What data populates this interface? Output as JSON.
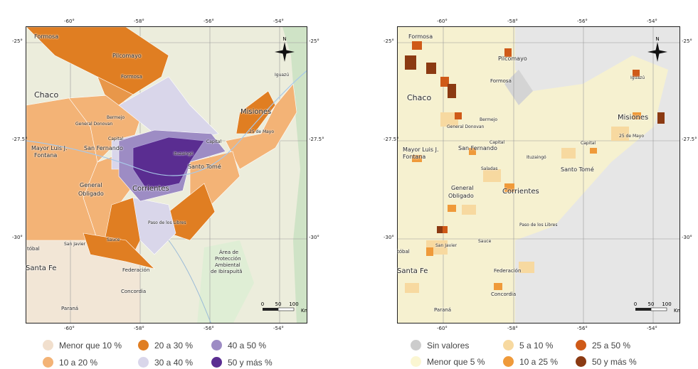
{
  "maps": [
    {
      "id": "left",
      "x_ticks": [
        "-60°",
        "-58°",
        "-56°",
        "-54°"
      ],
      "y_ticks": [
        "-25°",
        "-27.5°",
        "-30°"
      ],
      "north_label": "N",
      "scale_labels": [
        "0",
        "50",
        "100",
        "Km"
      ],
      "places": [
        {
          "name": "Formosa"
        },
        {
          "name": "Pilcomayo"
        },
        {
          "name": "Formosa"
        },
        {
          "name": "Chaco"
        },
        {
          "name": "Bermejo"
        },
        {
          "name": "General Donovan"
        },
        {
          "name": "Misiones"
        },
        {
          "name": "Iguazú"
        },
        {
          "name": "25 de Mayo"
        },
        {
          "name": "Capital"
        },
        {
          "name": "Capital"
        },
        {
          "name": "Mayor Luis J."
        },
        {
          "name": "Fontana"
        },
        {
          "name": "San Fernando"
        },
        {
          "name": "Ituzaingó"
        },
        {
          "name": "Santo Tomé"
        },
        {
          "name": "General"
        },
        {
          "name": "Obligado"
        },
        {
          "name": "Corrientes"
        },
        {
          "name": "Paso de los Libres"
        },
        {
          "name": "San Javier"
        },
        {
          "name": "Sauce"
        },
        {
          "name": "Área de"
        },
        {
          "name": "Protección"
        },
        {
          "name": "Ambiental"
        },
        {
          "name": "de Ibirapuitã"
        },
        {
          "name": "Santa Fe"
        },
        {
          "name": "Federación"
        },
        {
          "name": "Concordia"
        },
        {
          "name": "Paraná"
        },
        {
          "name": "tóbal"
        }
      ]
    },
    {
      "id": "right",
      "x_ticks": [
        "-60°",
        "-58°",
        "-56°",
        "-54°"
      ],
      "y_ticks": [
        "-25°",
        "-27.5°",
        "-30°"
      ],
      "north_label": "N",
      "scale_labels": [
        "0",
        "50",
        "100",
        "Km"
      ],
      "places": [
        {
          "name": "Formosa"
        },
        {
          "name": "Pilcomayo"
        },
        {
          "name": "Formosa"
        },
        {
          "name": "Chaco"
        },
        {
          "name": "Bermejo"
        },
        {
          "name": "General Donovan"
        },
        {
          "name": "Iguazú"
        },
        {
          "name": "Misiones"
        },
        {
          "name": "25 de Mayo"
        },
        {
          "name": "Capital"
        },
        {
          "name": "Capital"
        },
        {
          "name": "Mayor Luis J."
        },
        {
          "name": "Fontana"
        },
        {
          "name": "San Fernando"
        },
        {
          "name": "Saladas"
        },
        {
          "name": "Ituzaingó"
        },
        {
          "name": "Santo Tomé"
        },
        {
          "name": "General"
        },
        {
          "name": "Obligado"
        },
        {
          "name": "Corrientes"
        },
        {
          "name": "Paso de los Libres"
        },
        {
          "name": "San Javier"
        },
        {
          "name": "Sauce"
        },
        {
          "name": "Santa Fe"
        },
        {
          "name": "Federación"
        },
        {
          "name": "Concordia"
        },
        {
          "name": "Paraná"
        },
        {
          "name": "tóbal"
        }
      ]
    }
  ],
  "legend_left": [
    {
      "label": "Menor que 10 %",
      "color": "#f1dfcd"
    },
    {
      "label": "20 a 30 %",
      "color": "#e07e22"
    },
    {
      "label": "40 a 50 %",
      "color": "#9d8cc4"
    },
    {
      "label": "10 a 20 %",
      "color": "#f3b376"
    },
    {
      "label": "30 a 40 %",
      "color": "#d9d6ea"
    },
    {
      "label": "50 y más %",
      "color": "#5a2d91"
    }
  ],
  "legend_right": [
    {
      "label": "Sin valores",
      "color": "#cccccc"
    },
    {
      "label": "5 a 10 %",
      "color": "#f7d9a0"
    },
    {
      "label": "25 a 50 %",
      "color": "#cf5a18"
    },
    {
      "label": "Menor que 5 %",
      "color": "#fbf6d2"
    },
    {
      "label": "10 a 25 %",
      "color": "#ef9a3a"
    },
    {
      "label": "50 y más %",
      "color": "#8b3a12"
    }
  ]
}
